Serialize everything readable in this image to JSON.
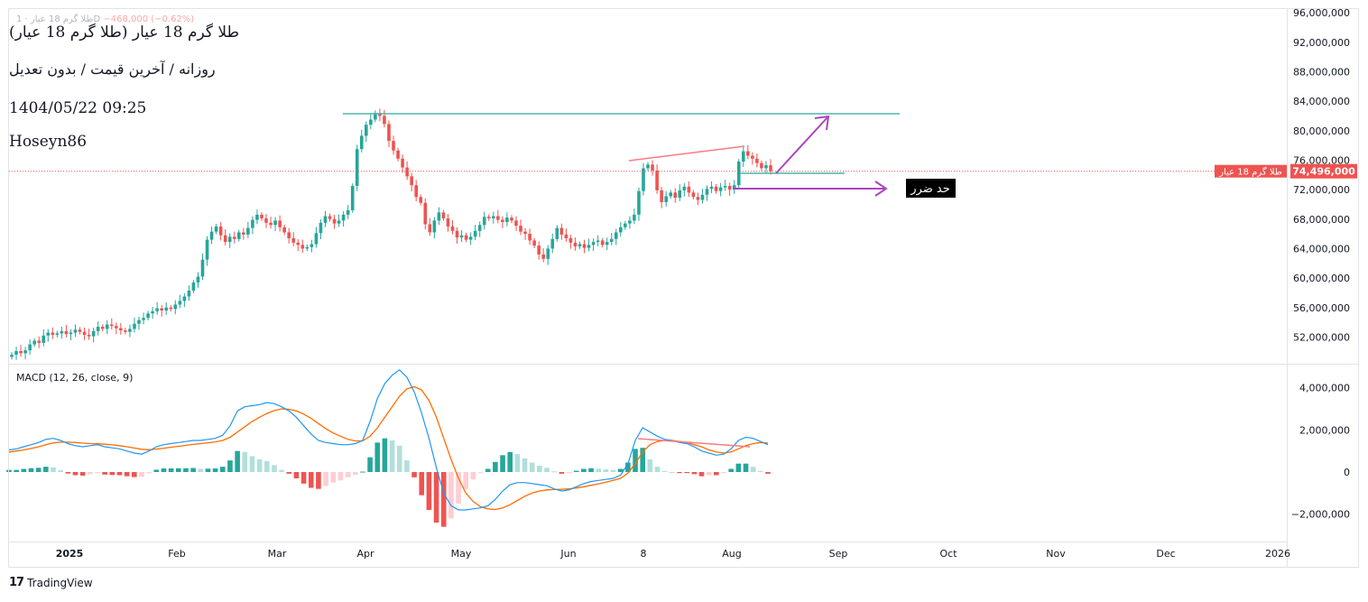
{
  "header": {
    "title": "طلا گرم 18 عیار (طلا گرم 18 عیار)",
    "subtitle": "روزانه / آخرین قیمت / بدون تعدیل",
    "datetime": "1404/05/22 09:25",
    "author": "Hoseyn86",
    "ghost_symbol": "طلا گرم 18 عیار · 1D",
    "ghost_change": "−468,000 (−0.62%)"
  },
  "annotation": {
    "stop_loss_label": "حد ضرر"
  },
  "price_badge": {
    "symbol_label": "طلا گرم 18 عیار",
    "value_label": "74,496,000"
  },
  "macd": {
    "label": "MACD (12, 26, close, 9)"
  },
  "branding": {
    "logo_mark": "17",
    "logo_text": "TradingView"
  },
  "colors": {
    "up": "#26a69a",
    "down": "#ef5350",
    "macd_line": "#2196f3",
    "signal_line": "#ff6d00",
    "trendline": "#f77c80",
    "resistance": "#4db6ac",
    "arrow": "#ab47bc",
    "price_line": "#ef5350"
  },
  "chart_data": [
    {
      "type": "candlestick",
      "x_start": "2024-12-27",
      "x_axis_ticks": [
        "2025",
        "Feb",
        "Mar",
        "Apr",
        "May",
        "Jun",
        "8",
        "Aug",
        "Sep",
        "Oct",
        "Nov",
        "Dec",
        "2026"
      ],
      "y_axis_ticks": [
        52000000,
        56000000,
        60000000,
        64000000,
        68000000,
        72000000,
        76000000,
        80000000,
        84000000,
        88000000,
        92000000,
        96000000
      ],
      "y_range": [
        48500000,
        96500000
      ],
      "last_price": 74496000,
      "close_series": [
        49.6,
        50.1,
        49.8,
        50.2,
        51.0,
        51.5,
        51.2,
        52.2,
        52.6,
        52.3,
        52.5,
        52.8,
        52.4,
        52.6,
        53.0,
        52.7,
        52.3,
        52.1,
        52.8,
        53.4,
        53.1,
        53.7,
        53.5,
        53.2,
        52.9,
        52.7,
        53.1,
        53.8,
        54.3,
        54.6,
        55.2,
        55.5,
        55.9,
        55.6,
        56.0,
        55.8,
        56.4,
        56.9,
        57.5,
        58.3,
        59.4,
        60.2,
        62.5,
        65.2,
        66.3,
        67.0,
        65.8,
        64.9,
        65.6,
        65.3,
        66.2,
        65.9,
        66.8,
        67.9,
        68.6,
        68.1,
        67.5,
        67.2,
        67.8,
        66.9,
        66.2,
        65.4,
        64.8,
        64.5,
        64.0,
        64.2,
        64.6,
        66.1,
        67.5,
        68.4,
        68.0,
        67.4,
        67.8,
        68.6,
        69.2,
        72.5,
        77.5,
        79.3,
        80.8,
        81.5,
        82.4,
        82.0,
        80.9,
        78.6,
        77.3,
        76.2,
        75.0,
        73.8,
        72.6,
        71.0,
        70.2,
        67.3,
        66.2,
        67.8,
        68.9,
        68.1,
        67.0,
        66.4,
        65.5,
        65.8,
        65.2,
        65.6,
        66.4,
        67.2,
        68.3,
        68.1,
        68.4,
        67.9,
        67.6,
        68.2,
        67.8,
        67.1,
        66.3,
        66.0,
        65.1,
        64.4,
        63.2,
        62.6,
        64.0,
        65.3,
        66.8,
        65.9,
        65.4,
        64.8,
        64.3,
        64.6,
        64.1,
        64.5,
        64.9,
        65.1,
        64.5,
        64.9,
        65.3,
        66.2,
        66.9,
        67.4,
        67.8,
        68.6,
        71.8,
        74.9,
        75.4,
        74.6,
        71.9,
        70.3,
        71.1,
        71.6,
        70.9,
        71.9,
        72.4,
        71.6,
        71.0,
        70.6,
        71.3,
        72.1,
        72.4,
        71.8,
        72.3,
        72.5,
        72.0,
        72.6,
        75.8,
        77.2,
        76.6,
        76.2,
        75.6,
        74.9,
        75.3,
        74.5
      ],
      "macd_line_end": 1.3,
      "signal_line_end": 1.4
    },
    {
      "type": "histogram+line",
      "name": "MACD (12, 26, close, 9)",
      "y_axis_ticks": [
        -2000000,
        0,
        2000000,
        4000000
      ],
      "y_range": [
        -3300000,
        5100000
      ],
      "series": [
        {
          "name": "MACD",
          "values": [
            1.05,
            1.1,
            1.2,
            1.3,
            1.4,
            1.55,
            1.6,
            1.5,
            1.35,
            1.25,
            1.2,
            1.25,
            1.3,
            1.2,
            1.15,
            1.1,
            1.0,
            0.9,
            0.85,
            1.0,
            1.2,
            1.3,
            1.35,
            1.4,
            1.45,
            1.5,
            1.5,
            1.55,
            1.6,
            1.75,
            2.2,
            2.9,
            3.1,
            3.15,
            3.2,
            3.3,
            3.25,
            3.1,
            2.9,
            2.6,
            2.2,
            1.8,
            1.5,
            1.4,
            1.35,
            1.3,
            1.3,
            1.35,
            1.5,
            2.4,
            3.5,
            4.2,
            4.6,
            4.85,
            4.5,
            3.8,
            2.8,
            1.6,
            0.2,
            -1.0,
            -1.6,
            -1.8,
            -1.8,
            -1.75,
            -1.7,
            -1.6,
            -1.3,
            -0.9,
            -0.6,
            -0.5,
            -0.5,
            -0.55,
            -0.6,
            -0.65,
            -0.8,
            -0.9,
            -0.85,
            -0.7,
            -0.55,
            -0.45,
            -0.4,
            -0.35,
            -0.3,
            -0.15,
            0.4,
            1.5,
            2.1,
            1.9,
            1.7,
            1.55,
            1.5,
            1.4,
            1.35,
            1.2,
            1.0,
            0.9,
            0.8,
            0.85,
            1.1,
            1.5,
            1.65,
            1.6,
            1.45,
            1.3
          ]
        },
        {
          "name": "Signal",
          "values": [
            0.95,
            1.0,
            1.05,
            1.12,
            1.2,
            1.3,
            1.38,
            1.42,
            1.42,
            1.4,
            1.37,
            1.35,
            1.34,
            1.32,
            1.29,
            1.25,
            1.2,
            1.14,
            1.08,
            1.06,
            1.09,
            1.13,
            1.18,
            1.22,
            1.27,
            1.31,
            1.35,
            1.39,
            1.43,
            1.5,
            1.65,
            1.9,
            2.15,
            2.4,
            2.6,
            2.78,
            2.92,
            3.0,
            2.98,
            2.9,
            2.75,
            2.55,
            2.3,
            2.06,
            1.85,
            1.7,
            1.55,
            1.48,
            1.48,
            1.7,
            2.1,
            2.6,
            3.1,
            3.6,
            3.95,
            4.05,
            3.9,
            3.4,
            2.6,
            1.6,
            0.6,
            -0.3,
            -1.0,
            -1.4,
            -1.65,
            -1.75,
            -1.78,
            -1.7,
            -1.55,
            -1.35,
            -1.15,
            -1.0,
            -0.9,
            -0.85,
            -0.83,
            -0.82,
            -0.8,
            -0.76,
            -0.7,
            -0.63,
            -0.56,
            -0.48,
            -0.4,
            -0.3,
            -0.05,
            0.4,
            0.95,
            1.3,
            1.45,
            1.5,
            1.5,
            1.45,
            1.4,
            1.3,
            1.2,
            1.05,
            0.95,
            0.9,
            0.95,
            1.1,
            1.25,
            1.35,
            1.4,
            1.38
          ]
        }
      ]
    }
  ]
}
